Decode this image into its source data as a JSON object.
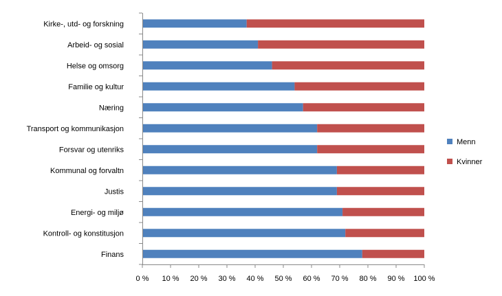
{
  "chart_data": {
    "type": "bar",
    "orientation": "horizontal",
    "stacked": "percent",
    "title": "",
    "xlabel": "",
    "ylabel": "",
    "xlim": [
      0,
      100
    ],
    "x_ticks": [
      "0 %",
      "10 %",
      "20 %",
      "30 %",
      "40 %",
      "50 %",
      "60 %",
      "70 %",
      "80 %",
      "90 %",
      "100 %"
    ],
    "categories": [
      "Kirke-, utd- og forskning",
      "Arbeid- og sosial",
      "Helse og omsorg",
      "Familie og kultur",
      "Næring",
      "Transport og kommunikasjon",
      "Forsvar og utenriks",
      "Kommunal og forvaltn",
      "Justis",
      "Energi- og miljø",
      "Kontroll- og konstitusjon",
      "Finans"
    ],
    "series": [
      {
        "name": "Menn",
        "color": "#4f81bd",
        "values": [
          37,
          41,
          46,
          54,
          57,
          62,
          62,
          69,
          69,
          71,
          72,
          78
        ]
      },
      {
        "name": "Kvinner",
        "color": "#c0504d",
        "values": [
          63,
          59,
          54,
          46,
          43,
          38,
          38,
          31,
          31,
          29,
          28,
          22
        ]
      }
    ],
    "legend_position": "right",
    "grid": false
  }
}
